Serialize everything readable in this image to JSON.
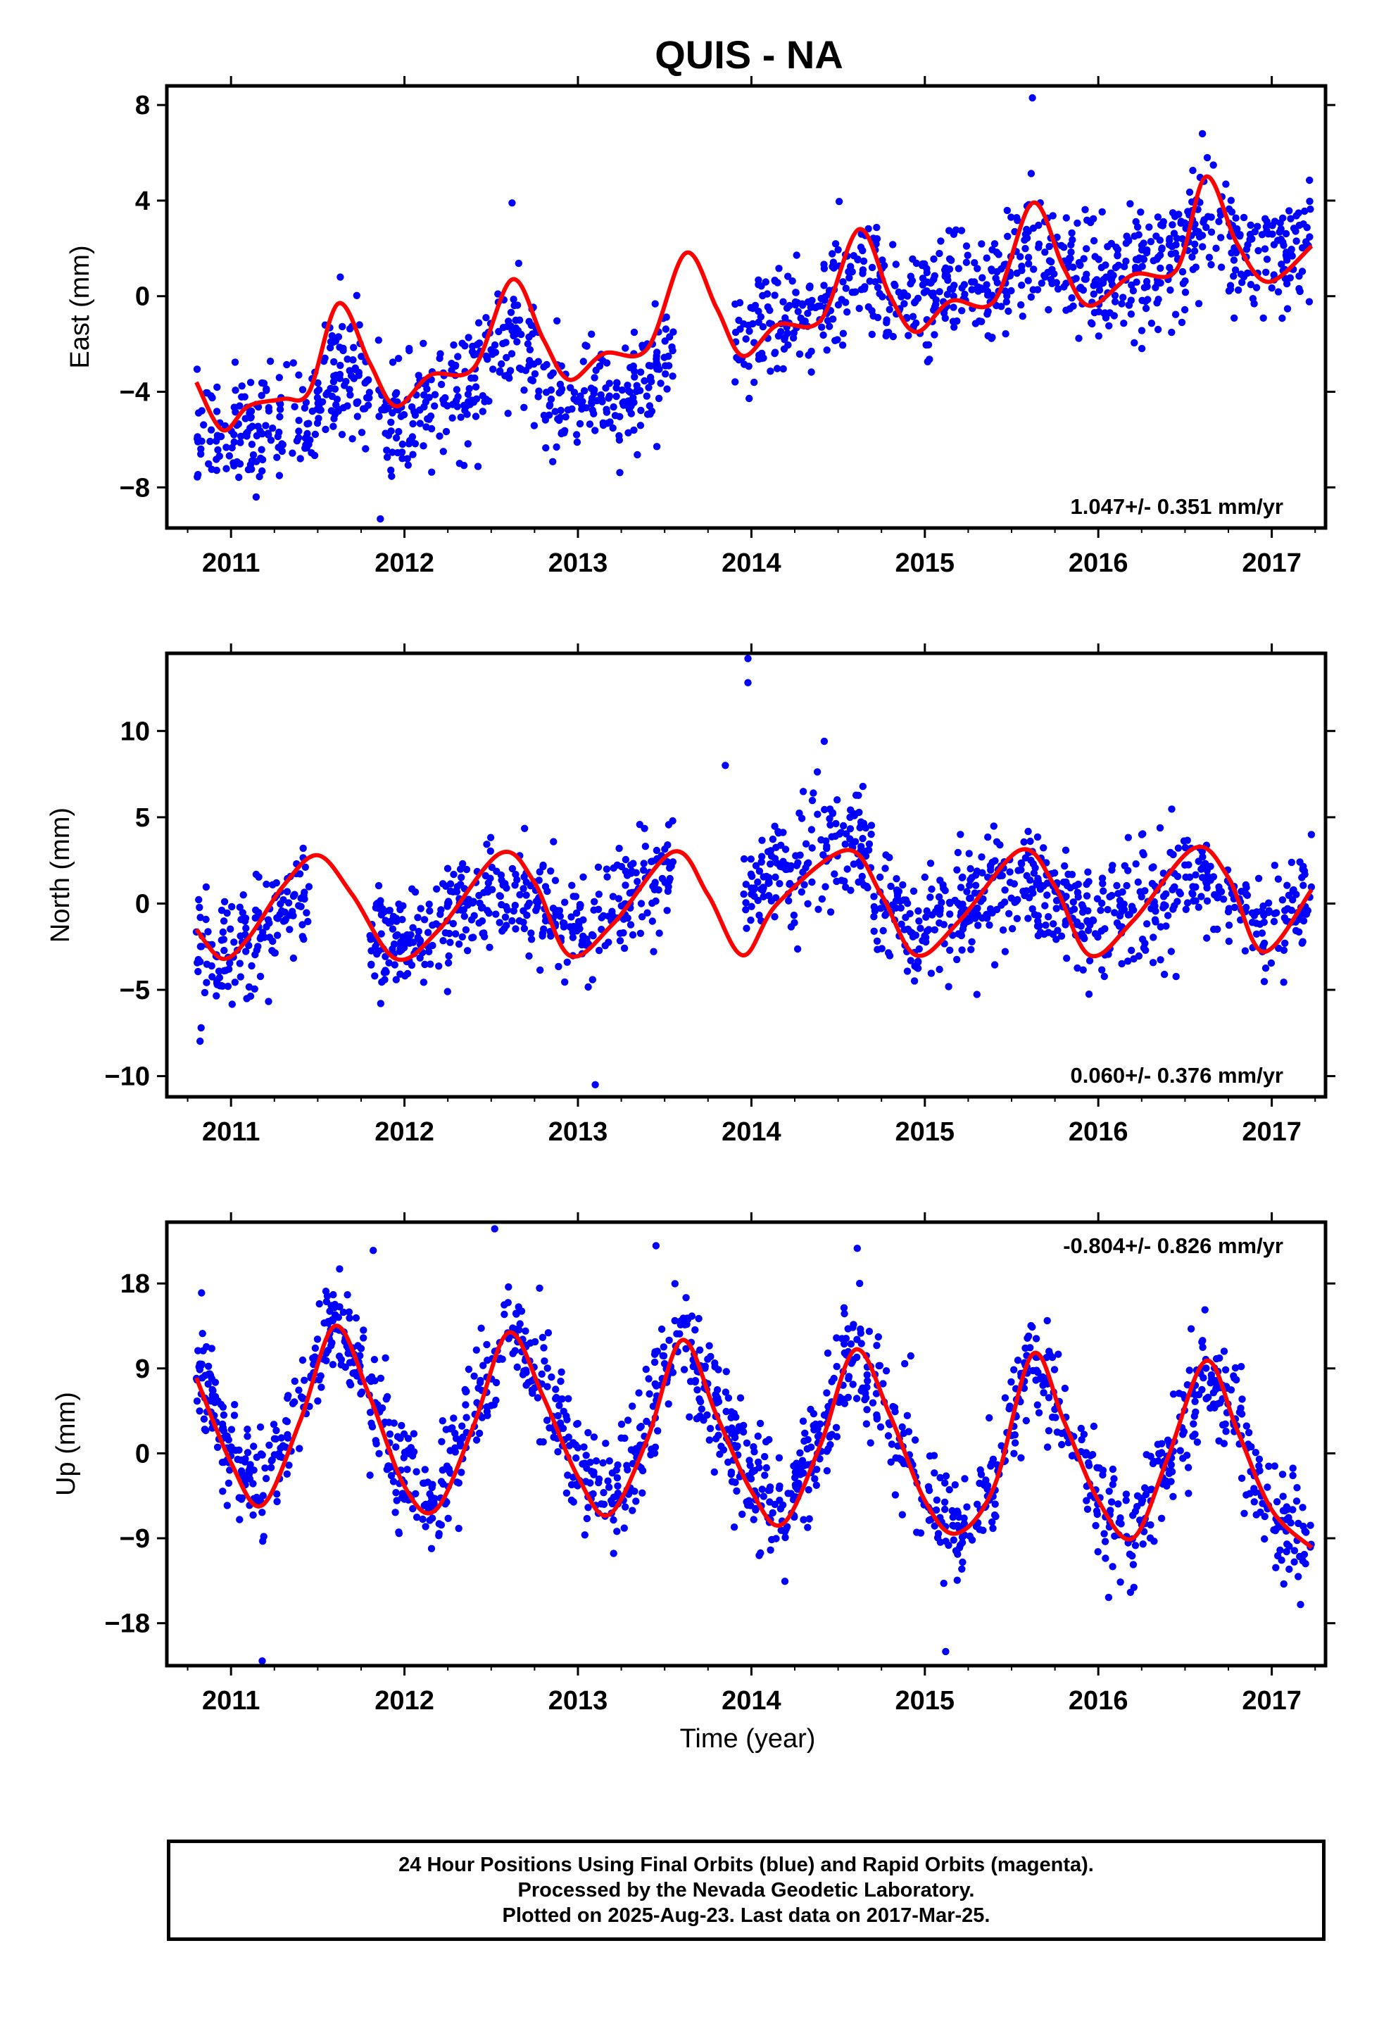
{
  "title": "QUIS - NA",
  "x_axis_label": "Time (year)",
  "colors": {
    "points": "#0000ff",
    "fit": "#ff0000",
    "frame": "#000000"
  },
  "footer": {
    "line1": "24 Hour Positions Using Final Orbits (blue) and Rapid Orbits (magenta).",
    "line2": "Processed by the Nevada Geodetic Laboratory.",
    "line3": "Plotted on 2025-Aug-23. Last data on 2017-Mar-25."
  },
  "chart_data": [
    {
      "type": "scatter",
      "ylabel": "East (mm)",
      "rate_label": "1.047+/- 0.351 mm/yr",
      "rate_position": "bottom-right",
      "xlim": [
        2010.63,
        2017.31
      ],
      "ylim": [
        -9.7,
        8.8
      ],
      "x_ticks": [
        2011,
        2012,
        2013,
        2014,
        2015,
        2016,
        2017
      ],
      "y_ticks": [
        -8,
        -4,
        0,
        4,
        8
      ],
      "y_tick_labels": [
        "−8",
        "−4",
        "0",
        "4",
        "8"
      ],
      "series": [
        {
          "kind": "points",
          "color": "#0000ff",
          "segments": [
            {
              "x": [
                2010.8,
                2011.8
              ],
              "trend": [
                -7.2,
                -4.6
              ],
              "period_sec": 0.0
            },
            {
              "x": [
                2011.85,
                2012.8
              ],
              "trend": [
                -6.5,
                -3.2
              ],
              "period_sec": 0.0
            },
            {
              "x": [
                2012.8,
                2013.55
              ],
              "trend": [
                -6.6,
                -4.4
              ],
              "period_sec": 0.0
            },
            {
              "x": [
                2013.9,
                2017.23
              ],
              "trend": [
                -1.0,
                2.5
              ],
              "period_sec": 0.0
            }
          ],
          "seasonal_amp": 1.3,
          "noise_sd": 1.2,
          "outliers": [
            [
              2011.63,
              0.8
            ],
            [
              2012.62,
              3.9
            ],
            [
              2015.62,
              8.3
            ],
            [
              2016.6,
              6.8
            ]
          ]
        },
        {
          "kind": "fit",
          "color": "#ff0000",
          "x": [
            2010.8,
            2010.95,
            2011.1,
            2011.3,
            2011.45,
            2011.62,
            2011.8,
            2011.95,
            2012.15,
            2012.4,
            2012.62,
            2012.8,
            2012.95,
            2013.15,
            2013.4,
            2013.62,
            2013.8,
            2013.95,
            2014.15,
            2014.4,
            2014.62,
            2014.8,
            2014.95,
            2015.15,
            2015.4,
            2015.62,
            2015.8,
            2015.95,
            2016.2,
            2016.45,
            2016.62,
            2016.8,
            2016.98,
            2017.23
          ],
          "y": [
            -3.6,
            -5.6,
            -4.6,
            -4.3,
            -4.0,
            -0.3,
            -2.8,
            -4.6,
            -3.3,
            -3.0,
            0.7,
            -1.8,
            -3.5,
            -2.4,
            -2.2,
            1.8,
            -0.5,
            -2.5,
            -1.2,
            -1.0,
            2.8,
            0.0,
            -1.5,
            -0.2,
            -0.2,
            3.9,
            1.2,
            -0.4,
            0.9,
            1.1,
            5.0,
            2.2,
            0.6,
            2.1
          ]
        }
      ]
    },
    {
      "type": "scatter",
      "ylabel": "North (mm)",
      "rate_label": "0.060+/- 0.376 mm/yr",
      "rate_position": "bottom-right",
      "xlim": [
        2010.63,
        2017.31
      ],
      "ylim": [
        -11.2,
        14.5
      ],
      "x_ticks": [
        2011,
        2012,
        2013,
        2014,
        2015,
        2016,
        2017
      ],
      "y_ticks": [
        -10,
        -5,
        0,
        5,
        10
      ],
      "y_tick_labels": [
        "−10",
        "−5",
        "0",
        "5",
        "10"
      ],
      "series": [
        {
          "kind": "points",
          "color": "#0000ff",
          "segments": [
            {
              "x": [
                2010.8,
                2011.45
              ],
              "trend": [
                -3.5,
                -0.5
              ],
              "period_sec": 0.0
            },
            {
              "x": [
                2011.8,
                2013.55
              ],
              "trend": [
                -2.0,
                0.5
              ],
              "period_sec": 0.0
            },
            {
              "x": [
                2013.95,
                2014.7
              ],
              "trend": [
                3.0,
                3.5
              ],
              "period_sec": 0.0
            },
            {
              "x": [
                2014.7,
                2017.23
              ],
              "trend": [
                0.0,
                0.5
              ],
              "period_sec": 0.0
            }
          ],
          "seasonal_amp": 3.0,
          "noise_sd": 1.6,
          "outliers": [
            [
              2013.98,
              14.2
            ],
            [
              2013.98,
              12.8
            ],
            [
              2013.85,
              8.0
            ],
            [
              2013.1,
              -10.5
            ],
            [
              2014.42,
              9.4
            ]
          ]
        },
        {
          "kind": "fit",
          "color": "#ff0000",
          "x": [
            2010.8,
            2010.95,
            2011.1,
            2011.3,
            2011.5,
            2011.7,
            2011.95,
            2012.2,
            2012.55,
            2012.75,
            2012.95,
            2013.2,
            2013.55,
            2013.75,
            2013.95,
            2014.15,
            2014.55,
            2014.75,
            2014.95,
            2015.2,
            2015.55,
            2015.75,
            2015.95,
            2016.2,
            2016.55,
            2016.75,
            2016.95,
            2017.23
          ],
          "y": [
            -1.5,
            -3.2,
            -2.0,
            1.0,
            2.8,
            0.5,
            -3.2,
            -1.5,
            2.9,
            1.2,
            -3.0,
            -1.2,
            3.0,
            0.5,
            -3.0,
            0.0,
            3.1,
            0.5,
            -3.0,
            -1.0,
            3.1,
            1.0,
            -3.0,
            -1.0,
            3.2,
            1.5,
            -2.8,
            0.8
          ]
        }
      ]
    },
    {
      "type": "scatter",
      "ylabel": "Up (mm)",
      "rate_label": "-0.804+/- 0.826 mm/yr",
      "rate_position": "top-right",
      "xlim": [
        2010.63,
        2017.31
      ],
      "ylim": [
        -22.5,
        24.5
      ],
      "x_ticks": [
        2011,
        2012,
        2013,
        2014,
        2015,
        2016,
        2017
      ],
      "y_ticks": [
        -18,
        -9,
        0,
        9,
        18
      ],
      "y_tick_labels": [
        "−18",
        "−9",
        "0",
        "9",
        "18"
      ],
      "series": [
        {
          "kind": "points",
          "color": "#0000ff",
          "segments": [
            {
              "x": [
                2010.8,
                2017.23
              ],
              "trend": [
                2.5,
                -0.5
              ],
              "period_sec": 0.0
            }
          ],
          "seasonal_amp": 9.5,
          "noise_sd": 3.0,
          "outliers": [
            [
              2011.18,
              -22.0
            ],
            [
              2012.52,
              23.8
            ],
            [
              2013.45,
              22.0
            ],
            [
              2015.12,
              -21.0
            ],
            [
              2011.82,
              21.5
            ],
            [
              2010.83,
              17.0
            ]
          ]
        },
        {
          "kind": "fit",
          "color": "#ff0000",
          "x": [
            2010.8,
            2011.0,
            2011.18,
            2011.4,
            2011.6,
            2011.8,
            2012.0,
            2012.18,
            2012.4,
            2012.6,
            2012.8,
            2013.0,
            2013.18,
            2013.4,
            2013.6,
            2013.8,
            2014.0,
            2014.18,
            2014.4,
            2014.6,
            2014.8,
            2015.0,
            2015.18,
            2015.4,
            2015.62,
            2015.8,
            2016.0,
            2016.2,
            2016.4,
            2016.62,
            2016.8,
            2017.0,
            2017.23
          ],
          "y": [
            8.0,
            -1.0,
            -5.5,
            3.5,
            13.5,
            6.0,
            -3.5,
            -6.0,
            3.0,
            12.8,
            6.0,
            -2.5,
            -6.5,
            1.5,
            12.0,
            4.0,
            -4.0,
            -7.5,
            1.0,
            11.0,
            4.0,
            -5.0,
            -8.5,
            -3.5,
            10.5,
            3.5,
            -5.0,
            -9.0,
            -0.5,
            9.8,
            2.5,
            -6.0,
            -10.0
          ]
        }
      ]
    }
  ]
}
